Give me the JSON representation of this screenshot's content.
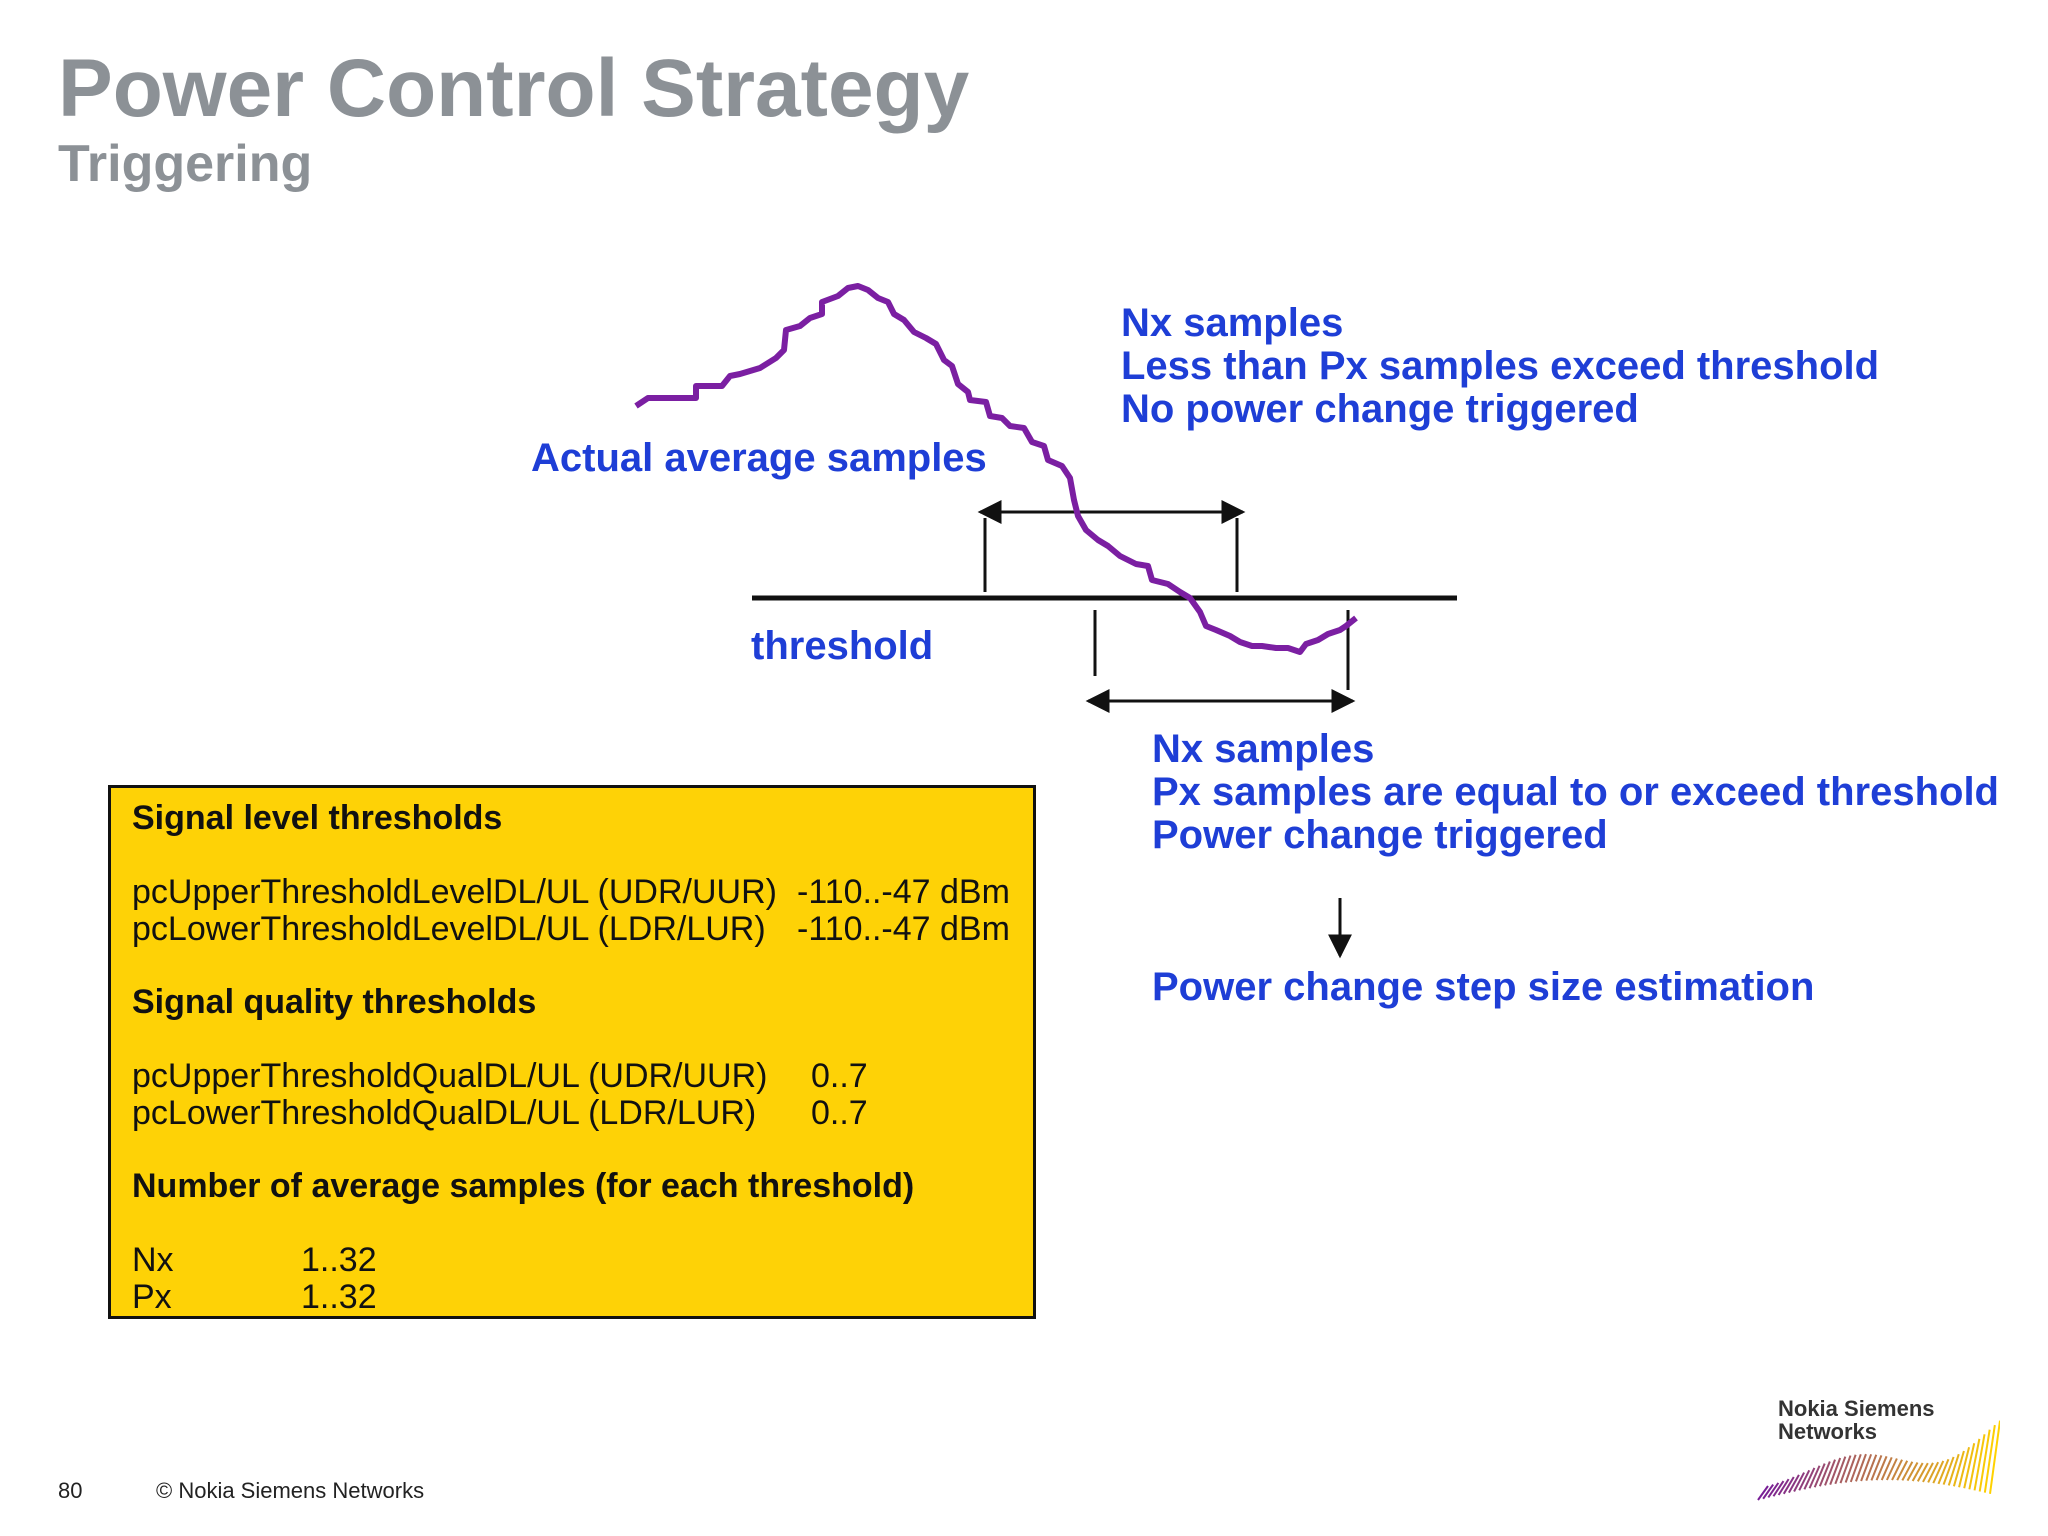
{
  "header": {
    "title": "Power Control Strategy",
    "subtitle": "Triggering"
  },
  "diagram": {
    "curve_label": "Actual average samples",
    "threshold_label": "threshold",
    "upper_note": [
      "Nx samples",
      "Less than Px samples exceed threshold",
      "No power change triggered"
    ],
    "lower_note": [
      "Nx samples",
      "Px samples are equal to or exceed threshold",
      "Power change triggered"
    ],
    "result_label": "Power change step size estimation",
    "colors": {
      "curve": "#7b1fa2",
      "label_text": "#1e3ed6",
      "lines": "#111111"
    }
  },
  "parameter_box": {
    "background": "#fed206",
    "sections": {
      "level_heading": "Signal level thresholds",
      "level_rows": [
        {
          "name": "pcUpperThresholdLevelDL/UL (UDR/UUR)",
          "range": "-110..-47 dBm"
        },
        {
          "name": "pcLowerThresholdLevelDL/UL (LDR/LUR)",
          "range": "-110..-47 dBm"
        }
      ],
      "quality_heading": "Signal quality thresholds",
      "quality_rows": [
        {
          "name": "pcUpperThresholdQualDL/UL (UDR/UUR)",
          "range": "0..7"
        },
        {
          "name": "pcLowerThresholdQualDL/UL (LDR/LUR)",
          "range": "0..7"
        }
      ],
      "samples_heading": "Number of average samples (for each threshold)",
      "samples_rows": [
        {
          "name": "Nx",
          "range": "1..32"
        },
        {
          "name": "Px",
          "range": "1..32"
        }
      ]
    }
  },
  "footer": {
    "page_number": "80",
    "copyright": "© Nokia Siemens Networks"
  },
  "logo": {
    "line1": "Nokia Siemens",
    "line2": "Networks"
  }
}
